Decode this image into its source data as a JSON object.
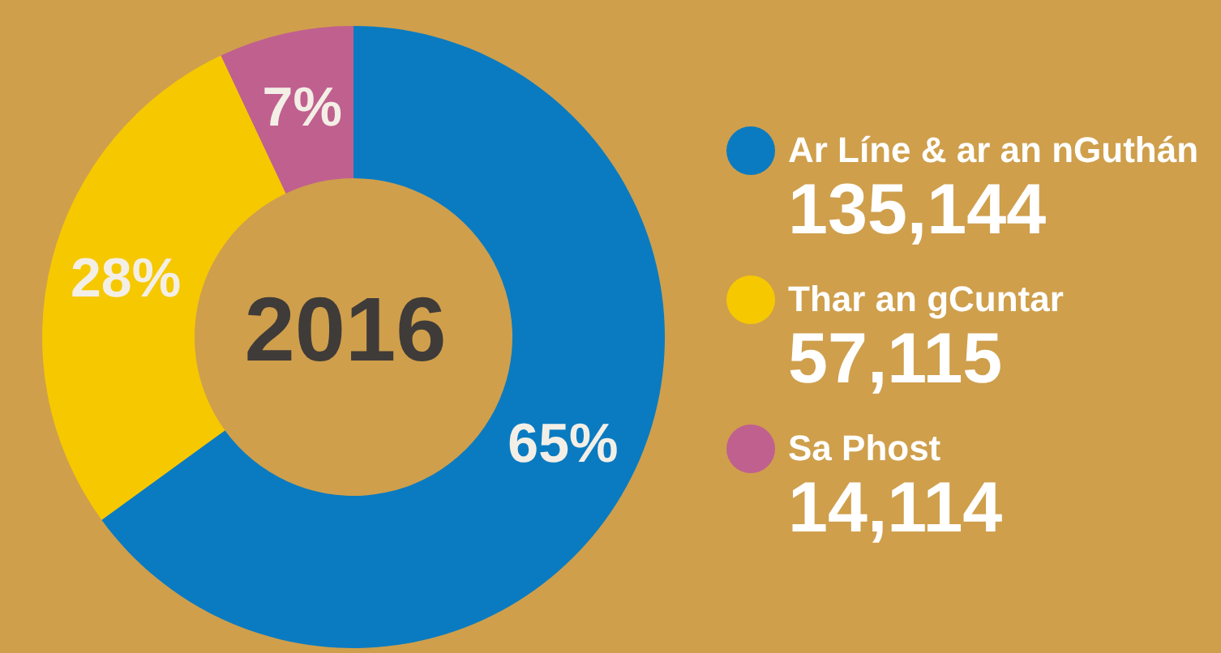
{
  "chart_data": {
    "type": "donut",
    "title": "2016",
    "categories": [
      "Ar Líne & ar an nGuthán",
      "Thar an gCuntar",
      "Sa Phost"
    ],
    "values": [
      65,
      28,
      7
    ],
    "colors": [
      "#0a7bc1",
      "#f6c800",
      "#c0608f"
    ],
    "value_labels": [
      "65%",
      "28%",
      "7%"
    ],
    "annotations": [
      "135,144",
      "57,115",
      "14,114"
    ],
    "legend": "right"
  }
}
